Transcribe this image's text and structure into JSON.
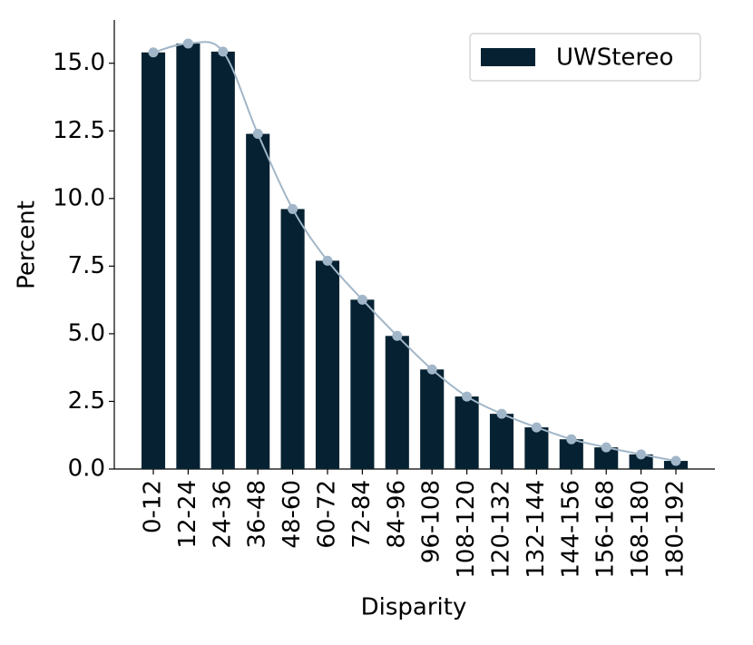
{
  "chart_data": {
    "type": "bar",
    "xlabel": "Disparity",
    "ylabel": "Percent",
    "categories": [
      "0-12",
      "12-24",
      "24-36",
      "36-48",
      "48-60",
      "60-72",
      "72-84",
      "84-96",
      "96-108",
      "108-120",
      "120-132",
      "132-144",
      "144-156",
      "156-168",
      "168-180",
      "180-192"
    ],
    "series": [
      {
        "name": "UWStereo",
        "color": "#062232",
        "values": [
          15.4,
          15.73,
          15.43,
          12.39,
          9.61,
          7.7,
          6.26,
          4.92,
          3.68,
          2.68,
          2.04,
          1.54,
          1.1,
          0.8,
          0.54,
          0.3
        ]
      }
    ],
    "curve": {
      "color": "#a1b6c8",
      "markers": true
    },
    "ylim": [
      0,
      16.6
    ],
    "yticks": [
      {
        "value": 0,
        "label": "0.0"
      },
      2.5,
      {
        "value": 5,
        "label": "5.0"
      },
      7.5,
      {
        "value": 10,
        "label": "10.0"
      },
      12.5,
      {
        "value": 15,
        "label": "15.0"
      }
    ],
    "legend": "upper right",
    "grid": false
  }
}
